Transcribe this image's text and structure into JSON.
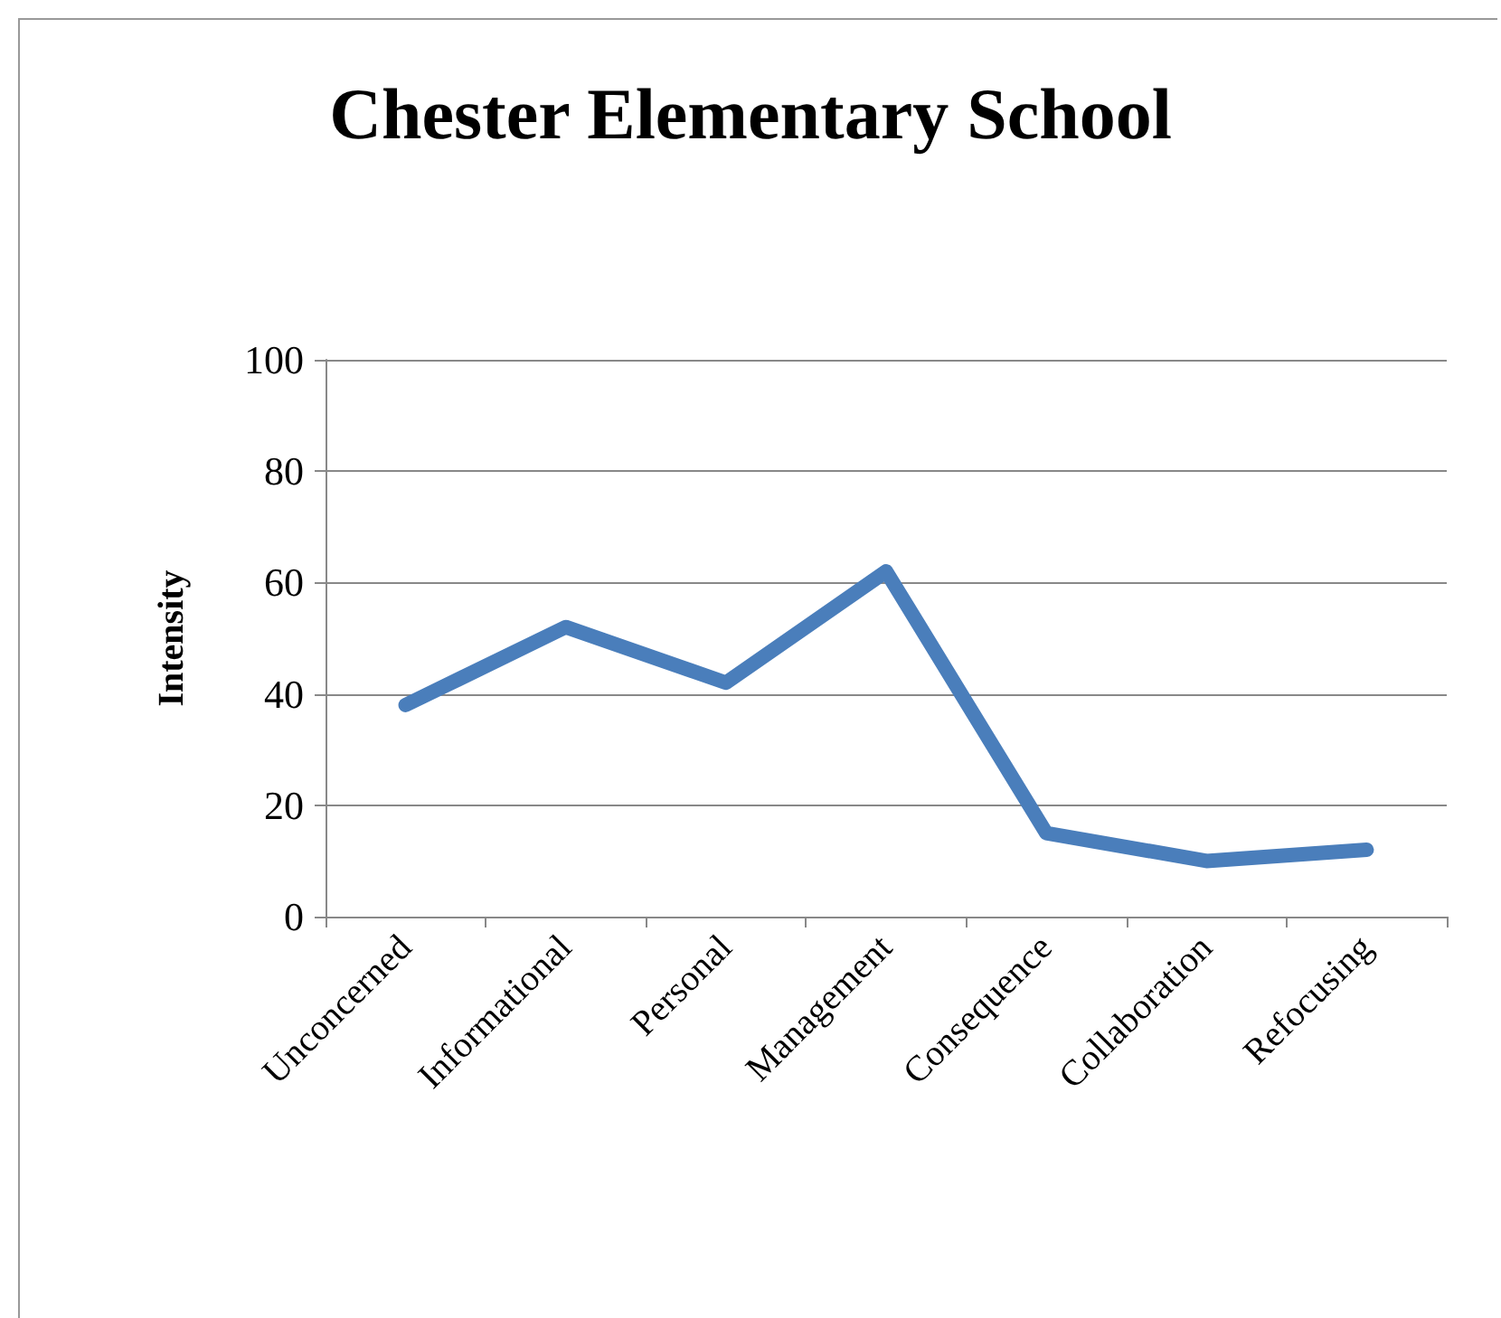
{
  "chart_data": {
    "type": "line",
    "title": "Chester Elementary School",
    "ylabel": "Intensity",
    "categories": [
      "Unconcerned",
      "Informational",
      "Personal",
      "Management",
      "Consequence",
      "Collaboration",
      "Refocusing"
    ],
    "series": [
      {
        "color": "#4a7ebb",
        "values": [
          38,
          52,
          42,
          62,
          15,
          10,
          12
        ]
      }
    ],
    "ylim": [
      0,
      100
    ],
    "yticks": [
      0,
      20,
      40,
      60,
      80,
      100
    ],
    "grid": "y",
    "marker": "none",
    "line_style": "solid"
  }
}
